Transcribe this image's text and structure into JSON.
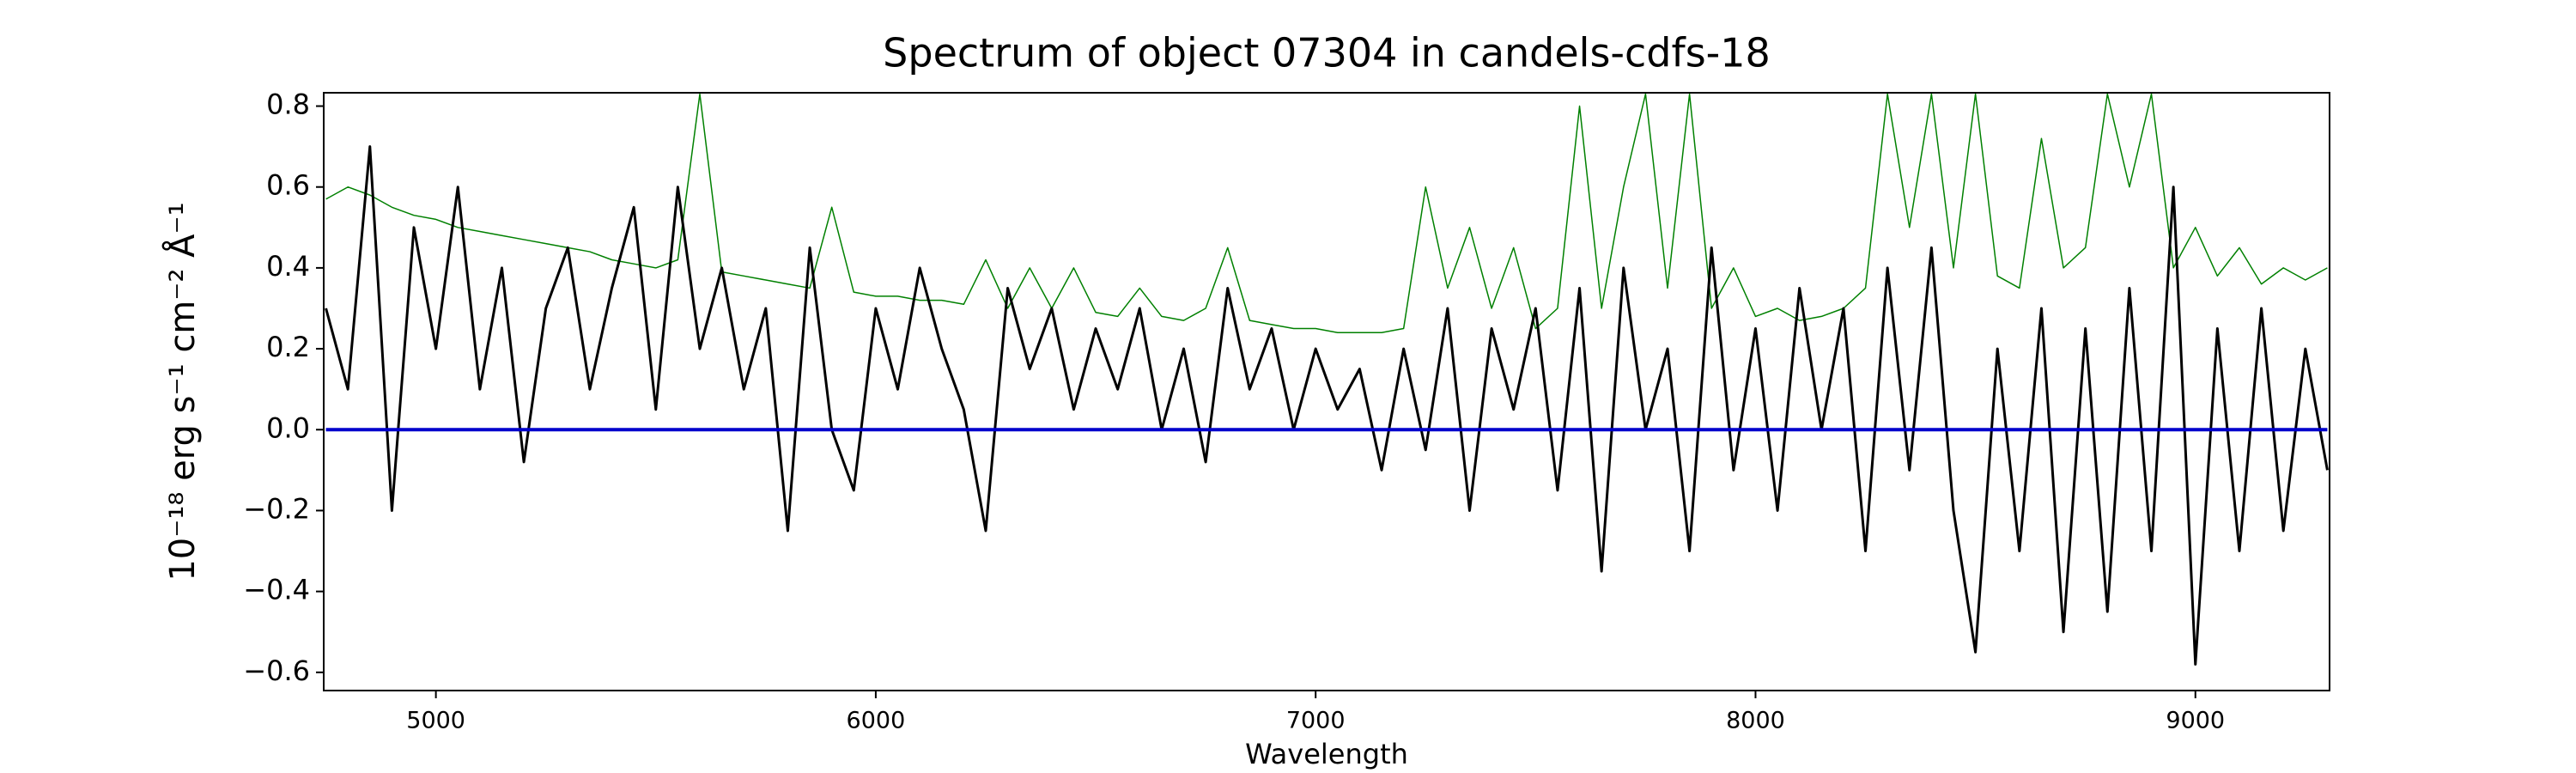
{
  "chart_data": {
    "type": "line",
    "title": "Spectrum of object 07304 in candels-cdfs-18",
    "x_label": "Wavelength",
    "y_label": "10⁻¹⁸ erg s⁻¹ cm⁻² Å⁻¹",
    "xlim": [
      4745,
      9305
    ],
    "ylim": [
      -0.645,
      0.833
    ],
    "xticks": [
      5000,
      6000,
      7000,
      8000,
      9000
    ],
    "yticks": [
      {
        "value": -0.6,
        "label": "−0.6"
      },
      {
        "value": -0.4,
        "label": "−0.4"
      },
      {
        "value": -0.2,
        "label": "−0.2"
      },
      {
        "value": 0,
        "label": "0.0"
      },
      0.2,
      0.4,
      0.6,
      0.8
    ],
    "x": [
      4750,
      4800,
      4850,
      4900,
      4950,
      5000,
      5050,
      5100,
      5150,
      5200,
      5250,
      5300,
      5350,
      5400,
      5450,
      5500,
      5550,
      5600,
      5650,
      5700,
      5750,
      5800,
      5850,
      5900,
      5950,
      6000,
      6050,
      6100,
      6150,
      6200,
      6250,
      6300,
      6350,
      6400,
      6450,
      6500,
      6550,
      6600,
      6650,
      6700,
      6750,
      6800,
      6850,
      6900,
      6950,
      7000,
      7050,
      7100,
      7150,
      7200,
      7250,
      7300,
      7350,
      7400,
      7450,
      7500,
      7550,
      7600,
      7650,
      7700,
      7750,
      7800,
      7850,
      7900,
      7950,
      8000,
      8050,
      8100,
      8150,
      8200,
      8250,
      8300,
      8350,
      8400,
      8450,
      8500,
      8550,
      8600,
      8650,
      8700,
      8750,
      8800,
      8850,
      8900,
      8950,
      9000,
      9050,
      9100,
      9150,
      9200,
      9250,
      9300
    ],
    "series": [
      {
        "color": "#008000",
        "width": 1.5,
        "values": [
          0.57,
          0.6,
          0.58,
          0.55,
          0.53,
          0.52,
          0.5,
          0.49,
          0.48,
          0.47,
          0.46,
          0.45,
          0.44,
          0.42,
          0.41,
          0.4,
          0.42,
          0.83,
          0.39,
          0.38,
          0.37,
          0.36,
          0.35,
          0.55,
          0.34,
          0.33,
          0.33,
          0.32,
          0.32,
          0.31,
          0.42,
          0.3,
          0.4,
          0.3,
          0.4,
          0.29,
          0.28,
          0.35,
          0.28,
          0.27,
          0.3,
          0.45,
          0.27,
          0.26,
          0.25,
          0.25,
          0.24,
          0.24,
          0.24,
          0.25,
          0.6,
          0.35,
          0.5,
          0.3,
          0.45,
          0.25,
          0.3,
          0.8,
          0.3,
          0.6,
          0.83,
          0.35,
          0.83,
          0.3,
          0.4,
          0.28,
          0.3,
          0.27,
          0.28,
          0.3,
          0.35,
          0.83,
          0.5,
          0.83,
          0.4,
          0.83,
          0.38,
          0.35,
          0.72,
          0.4,
          0.45,
          0.83,
          0.6,
          0.83,
          0.4,
          0.5,
          0.38,
          0.45,
          0.36,
          0.4,
          0.37,
          0.4
        ]
      },
      {
        "color": "#000000",
        "width": 3,
        "values": [
          0.3,
          0.1,
          0.7,
          -0.2,
          0.5,
          0.2,
          0.6,
          0.1,
          0.4,
          -0.08,
          0.3,
          0.45,
          0.1,
          0.35,
          0.55,
          0.05,
          0.6,
          0.2,
          0.4,
          0.1,
          0.3,
          -0.25,
          0.45,
          0,
          -0.15,
          0.3,
          0.1,
          0.4,
          0.2,
          0.05,
          -0.25,
          0.35,
          0.15,
          0.3,
          0.05,
          0.25,
          0.1,
          0.3,
          0,
          0.2,
          -0.08,
          0.35,
          0.1,
          0.25,
          0,
          0.2,
          0.05,
          0.15,
          -0.1,
          0.2,
          -0.05,
          0.3,
          -0.2,
          0.25,
          0.05,
          0.3,
          -0.15,
          0.35,
          -0.35,
          0.4,
          0,
          0.2,
          -0.3,
          0.45,
          -0.1,
          0.25,
          -0.2,
          0.35,
          0,
          0.3,
          -0.3,
          0.4,
          -0.1,
          0.45,
          -0.2,
          -0.55,
          0.2,
          -0.3,
          0.3,
          -0.5,
          0.25,
          -0.45,
          0.35,
          -0.3,
          0.6,
          -0.58,
          0.25,
          -0.3,
          0.3,
          -0.25,
          0.2,
          -0.1
        ]
      },
      {
        "color": "#0000cc",
        "width": 4,
        "x": [
          4750,
          9300
        ],
        "values": [
          0,
          0
        ]
      }
    ]
  }
}
